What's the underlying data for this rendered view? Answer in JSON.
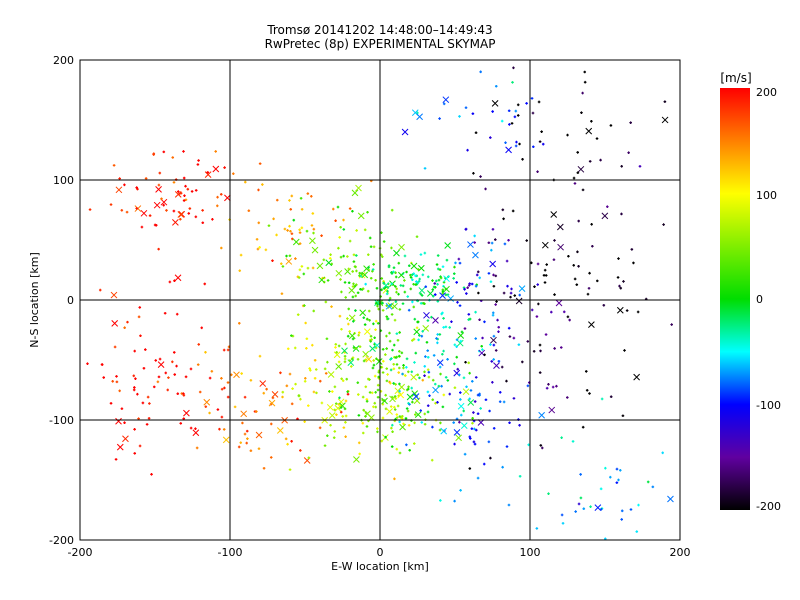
{
  "chart_data": {
    "type": "scatter",
    "title": "Tromsø 20141202 14:48:00–14:49:43",
    "subtitle": "RwPretec (8p) EXPERIMENTAL SKYMAP",
    "xlabel": "E-W location [km]",
    "ylabel": "N-S location [km]",
    "xlim": [
      -200,
      200
    ],
    "ylim": [
      -200,
      200
    ],
    "x_ticks": [
      "-200",
      "-100",
      "0",
      "100",
      "200"
    ],
    "y_ticks": [
      "-200",
      "-100",
      "0",
      "100",
      "200"
    ],
    "grid": true,
    "colorbar": {
      "label": "[m/s]",
      "range": [
        -200,
        200
      ],
      "ticks": [
        "200",
        "100",
        "0",
        "-100",
        "-200"
      ],
      "colormap": "black-purple-blue-cyan-green-yellow-red"
    },
    "markers": {
      "dot": "+",
      "cross": "×"
    },
    "cluster_summary": [
      {
        "x": -140,
        "y": 90,
        "value": 200,
        "spread": [
          22,
          18
        ],
        "count": 70
      },
      {
        "x": -150,
        "y": -60,
        "value": 200,
        "spread": [
          28,
          35
        ],
        "count": 90
      },
      {
        "x": -80,
        "y": -95,
        "value": 160,
        "spread": [
          25,
          20
        ],
        "count": 60
      },
      {
        "x": -60,
        "y": 60,
        "value": 130,
        "spread": [
          22,
          25
        ],
        "count": 50
      },
      {
        "x": -20,
        "y": -60,
        "value": 90,
        "spread": [
          25,
          40
        ],
        "count": 120
      },
      {
        "x": -20,
        "y": 30,
        "value": 40,
        "spread": [
          22,
          30
        ],
        "count": 90
      },
      {
        "x": 10,
        "y": -85,
        "value": 50,
        "spread": [
          25,
          18
        ],
        "count": 110
      },
      {
        "x": 0,
        "y": -30,
        "value": 20,
        "spread": [
          15,
          30
        ],
        "count": 120
      },
      {
        "x": 25,
        "y": 15,
        "value": -10,
        "spread": [
          18,
          12
        ],
        "count": 100
      },
      {
        "x": 40,
        "y": -40,
        "value": -40,
        "spread": [
          20,
          35
        ],
        "count": 90
      },
      {
        "x": 60,
        "y": -90,
        "value": -90,
        "spread": [
          22,
          20
        ],
        "count": 60
      },
      {
        "x": 70,
        "y": 10,
        "value": -110,
        "spread": [
          20,
          25
        ],
        "count": 50
      },
      {
        "x": 100,
        "y": -40,
        "value": -170,
        "spread": [
          28,
          40
        ],
        "count": 60
      },
      {
        "x": 130,
        "y": 40,
        "value": -200,
        "spread": [
          35,
          45
        ],
        "count": 60
      },
      {
        "x": 70,
        "y": 160,
        "value": -90,
        "spread": [
          25,
          20
        ],
        "count": 30
      },
      {
        "x": 120,
        "y": 140,
        "value": -200,
        "spread": [
          40,
          25
        ],
        "count": 35
      },
      {
        "x": 120,
        "y": -150,
        "value": -60,
        "spread": [
          50,
          30
        ],
        "count": 50
      }
    ]
  }
}
